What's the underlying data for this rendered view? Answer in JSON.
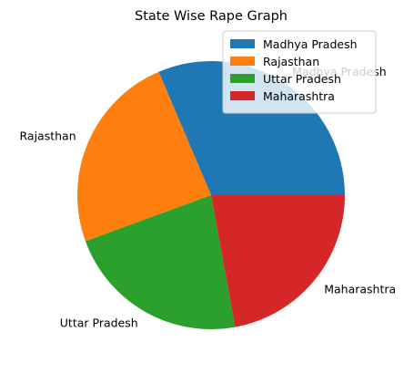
{
  "chart_data": {
    "type": "pie",
    "title": "State Wise Rape Graph",
    "categories": [
      "Madhya Pradesh",
      "Rajasthan",
      "Uttar Pradesh",
      "Maharashtra"
    ],
    "values": [
      4882,
      3756,
      3467,
      3438
    ],
    "colors": [
      "#1f77b4",
      "#ff7f0e",
      "#2ca02c",
      "#d62728"
    ],
    "start_angle_deg": 0,
    "direction": "counterclockwise",
    "legend": {
      "position": "top-right",
      "entries": [
        "Madhya Pradesh",
        "Rajasthan",
        "Uttar Pradesh",
        "Maharashtra"
      ]
    }
  }
}
